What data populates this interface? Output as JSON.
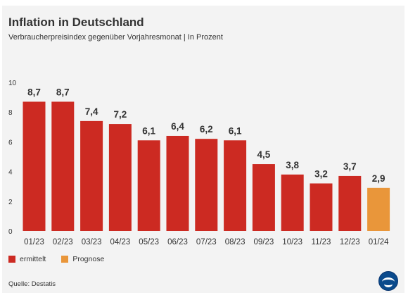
{
  "header": {
    "title": "Inflation in Deutschland",
    "subtitle": "Verbraucherpreisindex gegenüber Vorjahresmonat | In Prozent"
  },
  "chart_data": {
    "type": "bar",
    "categories": [
      "01/23",
      "02/23",
      "03/23",
      "04/23",
      "05/23",
      "06/23",
      "07/23",
      "08/23",
      "09/23",
      "10/23",
      "11/23",
      "12/23",
      "01/24"
    ],
    "values": [
      8.7,
      8.7,
      7.4,
      7.2,
      6.1,
      6.4,
      6.2,
      6.1,
      4.5,
      3.8,
      3.2,
      3.7,
      2.9
    ],
    "value_labels": [
      "8,7",
      "8,7",
      "7,4",
      "7,2",
      "6,1",
      "6,4",
      "6,2",
      "6,1",
      "4,5",
      "3,8",
      "3,2",
      "3,7",
      "2,9"
    ],
    "kinds": [
      "ermittelt",
      "ermittelt",
      "ermittelt",
      "ermittelt",
      "ermittelt",
      "ermittelt",
      "ermittelt",
      "ermittelt",
      "ermittelt",
      "ermittelt",
      "ermittelt",
      "ermittelt",
      "Prognose"
    ],
    "ylim": [
      0,
      10
    ],
    "yticks": [
      0,
      2,
      4,
      6,
      8,
      10
    ],
    "grid": false,
    "legend_position": "bottom-left"
  },
  "legend": {
    "items": [
      {
        "label": "ermittelt",
        "color": "#cc2a22"
      },
      {
        "label": "Prognose",
        "color": "#e9963a"
      }
    ]
  },
  "source": "Quelle: Destatis",
  "logo": {
    "icon": "ard-tagesschau-logo-icon"
  }
}
